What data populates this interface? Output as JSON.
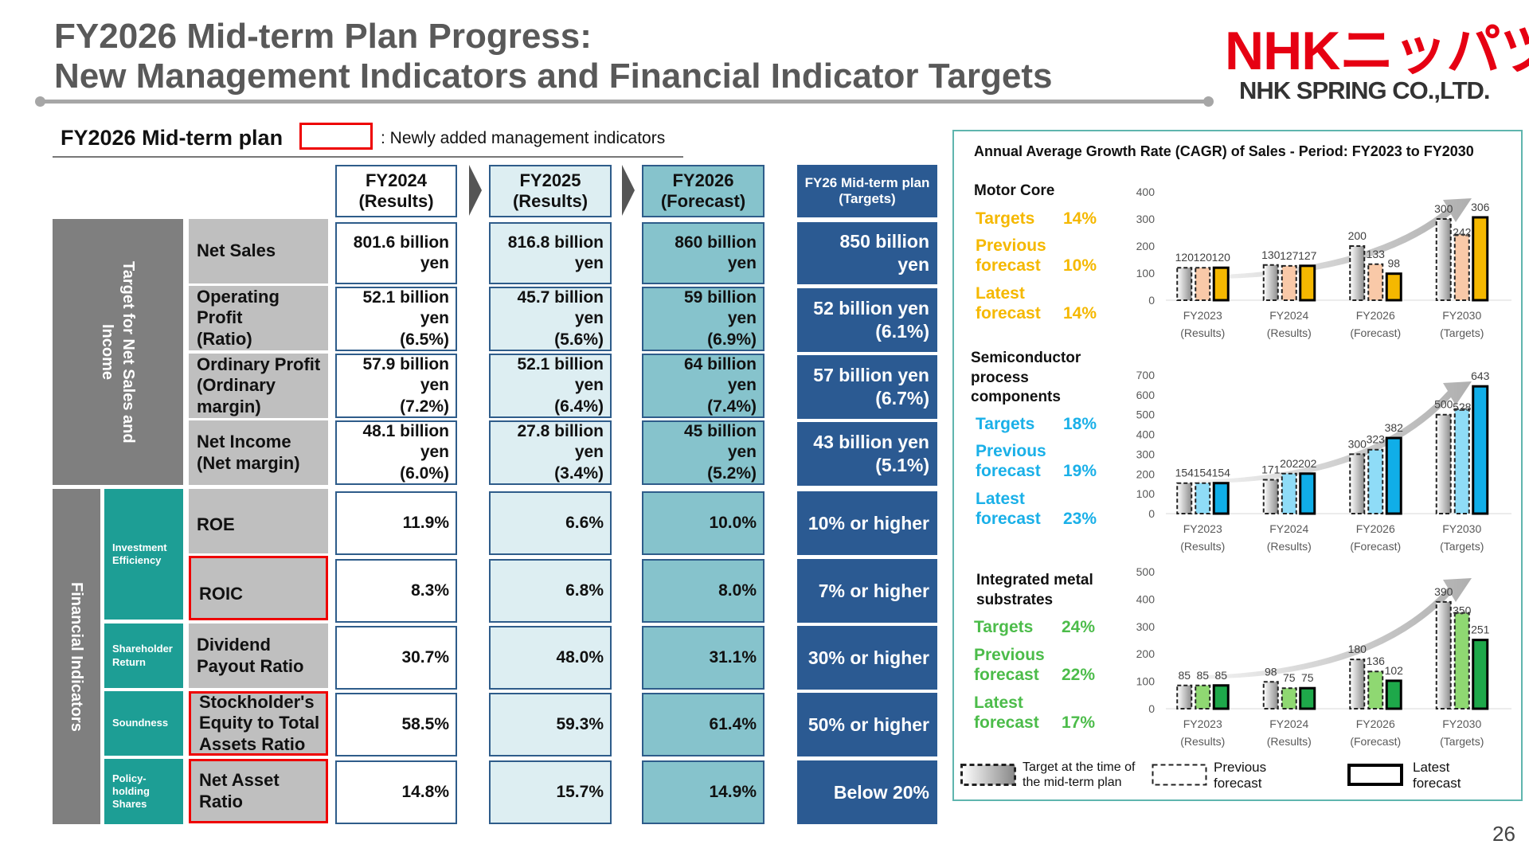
{
  "header": {
    "title_line1": "FY2026 Mid-term Plan Progress:",
    "title_line2": "New Management Indicators and Financial Indicator Targets",
    "logo_text": "NHKニッパツ",
    "logo_subtext": "NHK SPRING CO.,LTD."
  },
  "plan": {
    "label": "FY2026 Mid-term plan",
    "legend_text": ": Newly added management indicators"
  },
  "columns": [
    {
      "label": "FY2024\n(Results)"
    },
    {
      "label": "FY2025\n(Results)"
    },
    {
      "label": "FY2026\n(Forecast)"
    },
    {
      "label": "FY26 Mid-term plan\n(Targets)"
    }
  ],
  "categories": {
    "net_sales_income": "Target for Net Sales and\nIncome",
    "financial_indicators": "Financial Indicators",
    "investment_efficiency": "Investment\nEfficiency",
    "shareholder_return": "Shareholder\nReturn",
    "soundness": "Soundness",
    "policy_holding": "Policy-\nholding\nShares"
  },
  "rows": [
    {
      "label": "Net Sales",
      "new": false,
      "values": [
        "801.6 billion\nyen",
        "816.8 billion\nyen",
        "860 billion\nyen",
        "850 billion\nyen"
      ]
    },
    {
      "label": "Operating\nProfit\n(Ratio)",
      "new": false,
      "values": [
        "52.1 billion\nyen\n(6.5%)",
        "45.7 billion\nyen\n(5.6%)",
        "59 billion\nyen\n(6.9%)",
        "52 billion yen\n(6.1%)"
      ]
    },
    {
      "label": "Ordinary Profit\n(Ordinary\nmargin)",
      "new": false,
      "values": [
        "57.9 billion\nyen\n(7.2%)",
        "52.1 billion\nyen\n(6.4%)",
        "64 billion\nyen\n(7.4%)",
        "57 billion yen\n(6.7%)"
      ]
    },
    {
      "label": "Net Income\n(Net margin)",
      "new": false,
      "values": [
        "48.1 billion\nyen\n(6.0%)",
        "27.8 billion\nyen\n(3.4%)",
        "45 billion\nyen\n(5.2%)",
        "43 billion yen\n(5.1%)"
      ]
    },
    {
      "label": "ROE",
      "new": false,
      "values": [
        "11.9%",
        "6.6%",
        "10.0%",
        "10% or higher"
      ]
    },
    {
      "label": "ROIC",
      "new": true,
      "values": [
        "8.3%",
        "6.8%",
        "8.0%",
        "7% or higher"
      ]
    },
    {
      "label": "Dividend\nPayout Ratio",
      "new": false,
      "values": [
        "30.7%",
        "48.0%",
        "31.1%",
        "30% or higher"
      ]
    },
    {
      "label": "Stockholder's\nEquity to Total\nAssets Ratio",
      "new": true,
      "values": [
        "58.5%",
        "59.3%",
        "61.4%",
        "50% or higher"
      ]
    },
    {
      "label": "Net Asset\nRatio",
      "new": true,
      "values": [
        "14.8%",
        "15.7%",
        "14.9%",
        "Below 20%"
      ]
    }
  ],
  "cagr_panel": {
    "title": "Annual Average Growth Rate (CAGR) of Sales - Period: FY2023 to FY2030",
    "legend": [
      {
        "label": "Target at the time of\nthe mid-term plan",
        "style": "gradient-dashed"
      },
      {
        "label": "Previous\nforecast",
        "style": "dashed"
      },
      {
        "label": "Latest\nforecast",
        "style": "solid"
      }
    ]
  },
  "segments": [
    {
      "name": "Motor Core",
      "color": "#f5b800",
      "rates": [
        {
          "label": "Targets",
          "value": "14%"
        },
        {
          "label": "Previous\nforecast",
          "value": "10%"
        },
        {
          "label": "Latest\nforecast",
          "value": "14%"
        }
      ]
    },
    {
      "name": "Semiconductor\nprocess\ncomponents",
      "color": "#1ab0e8",
      "rates": [
        {
          "label": "Targets",
          "value": "18%"
        },
        {
          "label": "Previous\nforecast",
          "value": "19%"
        },
        {
          "label": "Latest\nforecast",
          "value": "23%"
        }
      ]
    },
    {
      "name": "Integrated metal\nsubstrates",
      "color": "#4cbc4a",
      "rates": [
        {
          "label": "Targets",
          "value": "24%"
        },
        {
          "label": "Previous\nforecast",
          "value": "22%"
        },
        {
          "label": "Latest\nforecast",
          "value": "17%"
        }
      ]
    }
  ],
  "chart_data": [
    {
      "type": "bar",
      "title": "Motor Core",
      "categories": [
        "FY2023\n(Results)",
        "FY2024\n(Results)",
        "FY2026\n(Forecast)",
        "FY2030\n(Targets)"
      ],
      "series": [
        {
          "name": "Target at the time of the mid-term plan",
          "values": [
            120,
            130,
            200,
            300
          ]
        },
        {
          "name": "Previous forecast",
          "values": [
            120,
            127,
            133,
            242
          ]
        },
        {
          "name": "Latest forecast",
          "values": [
            120,
            127,
            98,
            306
          ]
        }
      ],
      "ylim": [
        0,
        400
      ],
      "yticks": [
        0,
        100,
        200,
        300,
        400
      ],
      "colors": {
        "light": "#f9c9a8",
        "main": "#f5b800"
      }
    },
    {
      "type": "bar",
      "title": "Semiconductor process components",
      "categories": [
        "FY2023\n(Results)",
        "FY2024\n(Results)",
        "FY2026\n(Forecast)",
        "FY2030\n(Targets)"
      ],
      "series": [
        {
          "name": "Target at the time of the mid-term plan",
          "values": [
            154,
            171,
            300,
            500
          ]
        },
        {
          "name": "Previous forecast",
          "values": [
            154,
            202,
            323,
            528
          ]
        },
        {
          "name": "Latest forecast",
          "values": [
            154,
            202,
            382,
            643
          ]
        }
      ],
      "ylim": [
        0,
        700
      ],
      "yticks": [
        0,
        100,
        200,
        300,
        400,
        500,
        600,
        700
      ],
      "colors": {
        "light": "#8fdcf7",
        "main": "#10aee8"
      }
    },
    {
      "type": "bar",
      "title": "Integrated metal substrates",
      "categories": [
        "FY2023\n(Results)",
        "FY2024\n(Results)",
        "FY2026\n(Forecast)",
        "FY2030\n(Targets)"
      ],
      "series": [
        {
          "name": "Target at the time of the mid-term plan",
          "values": [
            85,
            98,
            180,
            390
          ]
        },
        {
          "name": "Previous forecast",
          "values": [
            85,
            75,
            136,
            350
          ]
        },
        {
          "name": "Latest forecast",
          "values": [
            85,
            75,
            102,
            251
          ]
        }
      ],
      "ylim": [
        0,
        500
      ],
      "yticks": [
        0,
        100,
        200,
        300,
        400,
        500
      ],
      "colors": {
        "light": "#8fd872",
        "main": "#1ea84a"
      }
    }
  ],
  "page_number": "26"
}
